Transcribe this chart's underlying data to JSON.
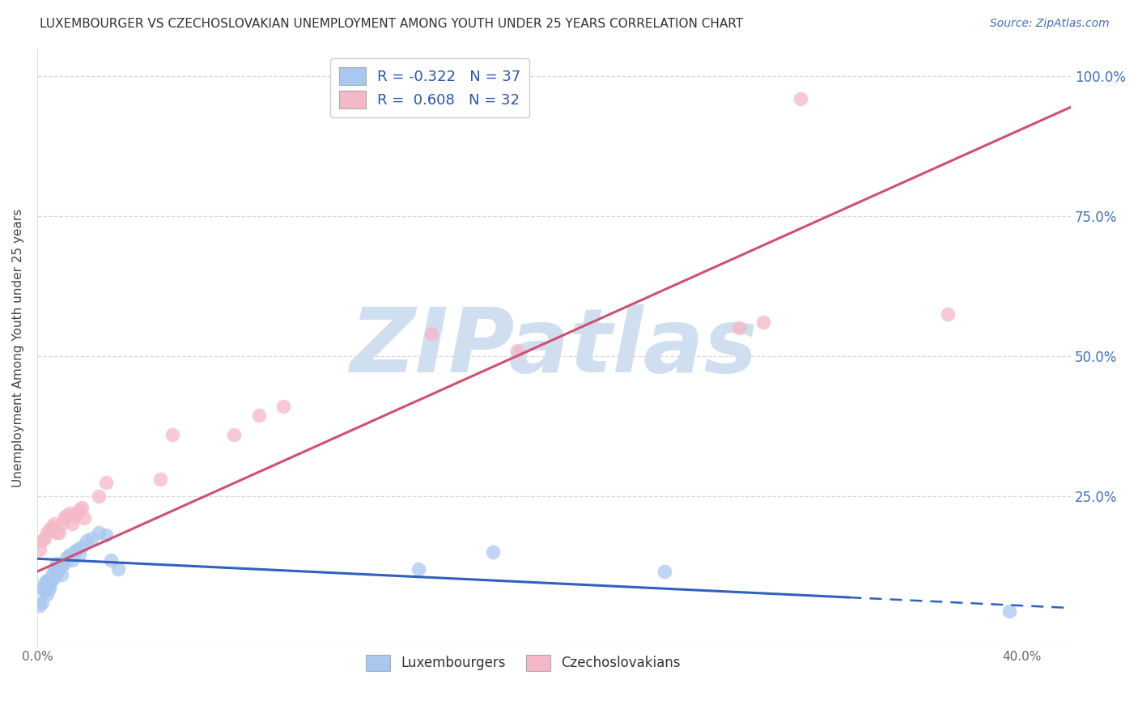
{
  "title": "LUXEMBOURGER VS CZECHOSLOVAKIAN UNEMPLOYMENT AMONG YOUTH UNDER 25 YEARS CORRELATION CHART",
  "source": "Source: ZipAtlas.com",
  "ylabel": "Unemployment Among Youth under 25 years",
  "xlim": [
    0.0,
    0.42
  ],
  "ylim": [
    -0.02,
    1.05
  ],
  "yticks": [
    0.0,
    0.25,
    0.5,
    0.75,
    1.0
  ],
  "ytick_labels_right": [
    "",
    "25.0%",
    "50.0%",
    "75.0%",
    "100.0%"
  ],
  "blue_R": -0.322,
  "blue_N": 37,
  "pink_R": 0.608,
  "pink_N": 32,
  "blue_color": "#a8c8f0",
  "pink_color": "#f5b8c8",
  "blue_edge_color": "#7090c0",
  "pink_edge_color": "#d08090",
  "blue_line_color": "#3060c0",
  "pink_line_color": "#d05070",
  "watermark": "ZIPatlas",
  "watermark_color": "#d0dff0",
  "legend_label_blue": "Luxembourgers",
  "legend_label_pink": "Czechoslovakians",
  "blue_scatter_x": [
    0.001,
    0.002,
    0.002,
    0.003,
    0.003,
    0.004,
    0.004,
    0.005,
    0.005,
    0.005,
    0.006,
    0.006,
    0.007,
    0.007,
    0.008,
    0.008,
    0.009,
    0.01,
    0.01,
    0.011,
    0.012,
    0.013,
    0.014,
    0.015,
    0.016,
    0.017,
    0.018,
    0.02,
    0.022,
    0.025,
    0.028,
    0.03,
    0.033,
    0.155,
    0.185,
    0.255,
    0.395
  ],
  "blue_scatter_y": [
    0.055,
    0.085,
    0.06,
    0.095,
    0.08,
    0.075,
    0.1,
    0.09,
    0.1,
    0.085,
    0.11,
    0.1,
    0.12,
    0.105,
    0.115,
    0.13,
    0.12,
    0.125,
    0.11,
    0.13,
    0.14,
    0.145,
    0.135,
    0.15,
    0.155,
    0.145,
    0.16,
    0.17,
    0.175,
    0.185,
    0.18,
    0.135,
    0.12,
    0.12,
    0.15,
    0.115,
    0.045
  ],
  "pink_scatter_x": [
    0.001,
    0.002,
    0.003,
    0.004,
    0.005,
    0.006,
    0.007,
    0.008,
    0.009,
    0.01,
    0.011,
    0.012,
    0.013,
    0.014,
    0.015,
    0.016,
    0.017,
    0.018,
    0.019,
    0.025,
    0.028,
    0.05,
    0.055,
    0.08,
    0.09,
    0.1,
    0.16,
    0.195,
    0.285,
    0.295,
    0.31,
    0.37
  ],
  "pink_scatter_y": [
    0.155,
    0.17,
    0.175,
    0.185,
    0.19,
    0.195,
    0.2,
    0.185,
    0.185,
    0.2,
    0.21,
    0.215,
    0.22,
    0.2,
    0.215,
    0.22,
    0.225,
    0.23,
    0.21,
    0.25,
    0.275,
    0.28,
    0.36,
    0.36,
    0.395,
    0.41,
    0.54,
    0.51,
    0.55,
    0.56,
    0.96,
    0.575
  ],
  "blue_trend_x": [
    0.0,
    0.42
  ],
  "blue_trend_y": [
    0.138,
    0.05
  ],
  "blue_trend_solid_end": 0.33,
  "pink_trend_x": [
    0.0,
    0.42
  ],
  "pink_trend_y": [
    0.115,
    0.945
  ],
  "grid_color": "#d8d8d8",
  "grid_dash": [
    4,
    4
  ]
}
